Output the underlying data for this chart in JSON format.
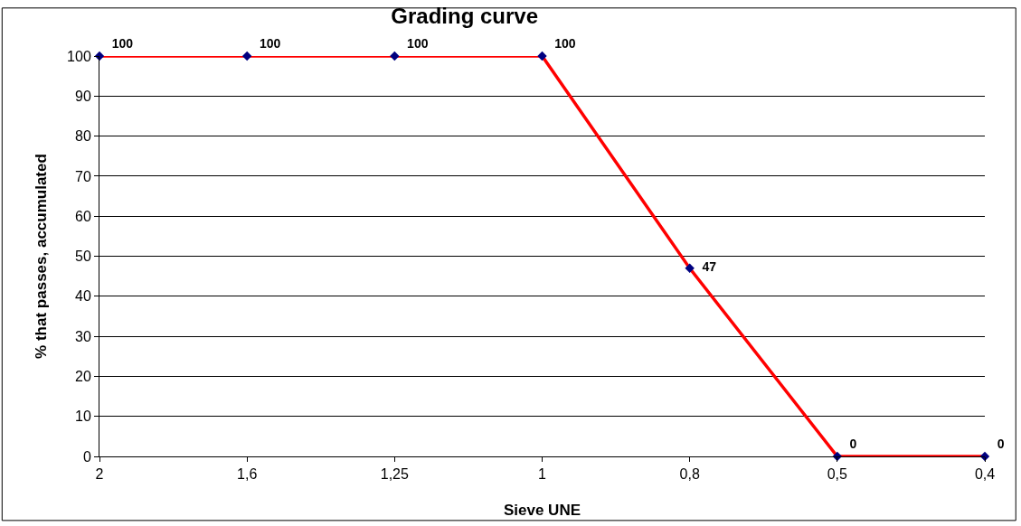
{
  "chart_data": {
    "type": "line",
    "title": "Grading curve",
    "xlabel": "Sieve UNE",
    "ylabel": "% that passes, accumulated",
    "categories": [
      "2",
      "1,6",
      "1,25",
      "1",
      "0,8",
      "0,5",
      "0,4"
    ],
    "series": [
      {
        "color": "#ff0000",
        "colors": [
          "#000080",
          "#000080",
          "#000080",
          "#000080",
          "#000080",
          "#000080",
          "#000080"
        ],
        "values": [
          100,
          100,
          100,
          100,
          47,
          0,
          0
        ]
      }
    ],
    "ylim": [
      0,
      100
    ],
    "yticks": [
      0,
      10,
      20,
      30,
      40,
      50,
      60,
      70,
      80,
      90,
      100
    ],
    "grid": "y",
    "marker": "diamond",
    "line_style": "solid",
    "data_labels": true
  }
}
